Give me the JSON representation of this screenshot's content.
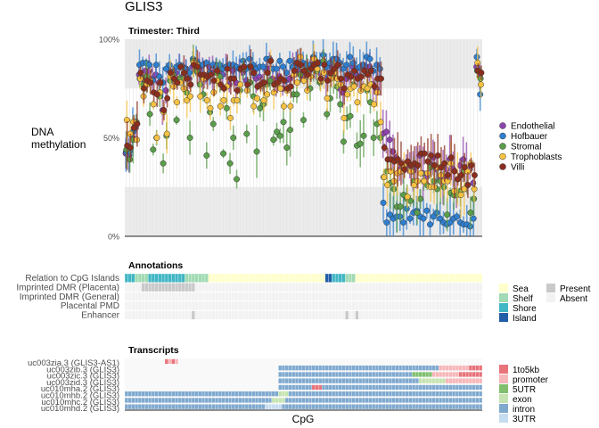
{
  "title": "GLIS3",
  "chart_data": [
    {
      "type": "scatter",
      "panel_title": "Trimester: Third",
      "ylabel": "DNA\nmethylation",
      "xlabel": "",
      "ylim": [
        0,
        1
      ],
      "yticks": [
        "0%",
        "50%",
        "100%"
      ],
      "grid": true,
      "legend_position": "right",
      "n_cpg": 107,
      "series": [
        {
          "name": "Endothelial",
          "color": "#8e44ad",
          "values": [
            0.42,
            0.41,
            0.5,
            0.55,
            0.82,
            0.8,
            0.84,
            0.84,
            0.8,
            0.82,
            0.78,
            0.64,
            0.74,
            0.84,
            0.81,
            0.83,
            0.86,
            0.81,
            0.84,
            0.8,
            0.86,
            0.84,
            0.85,
            0.82,
            0.8,
            0.86,
            0.83,
            0.87,
            0.83,
            0.82,
            0.86,
            0.77,
            0.84,
            0.78,
            0.85,
            0.83,
            0.79,
            0.86,
            0.83,
            0.8,
            0.81,
            0.78,
            0.85,
            0.85,
            0.8,
            0.79,
            0.81,
            0.75,
            0.79,
            0.8,
            0.86,
            0.87,
            0.84,
            0.81,
            0.84,
            0.84,
            0.87,
            0.84,
            0.83,
            0.88,
            0.8,
            0.83,
            0.86,
            0.86,
            0.75,
            0.73,
            0.8,
            0.82,
            0.86,
            0.82,
            0.8,
            0.76,
            0.86,
            0.86,
            0.77,
            0.75,
            0.8,
            0.52,
            0.53,
            0.49,
            0.43,
            0.4,
            0.34,
            0.33,
            0.37,
            0.36,
            0.33,
            0.35,
            0.41,
            0.32,
            0.3,
            0.37,
            0.4,
            0.34,
            0.29,
            0.3,
            0.34,
            0.39,
            0.34,
            0.22,
            0.36,
            0.39,
            0.35,
            0.34,
            0.27,
            0.86,
            0.81
          ]
        },
        {
          "name": "Hofbauer",
          "color": "#2f7fd0",
          "values": [
            0.43,
            0.43,
            0.53,
            0.57,
            0.87,
            0.88,
            0.88,
            0.87,
            0.79,
            0.87,
            0.81,
            0.78,
            0.85,
            0.87,
            0.83,
            0.86,
            0.87,
            0.86,
            0.85,
            0.83,
            0.9,
            0.89,
            0.87,
            0.87,
            0.88,
            0.83,
            0.87,
            0.86,
            0.87,
            0.85,
            0.86,
            0.87,
            0.87,
            0.86,
            0.85,
            0.89,
            0.85,
            0.9,
            0.87,
            0.85,
            0.86,
            0.86,
            0.9,
            0.9,
            0.85,
            0.85,
            0.89,
            0.86,
            0.83,
            0.89,
            0.86,
            0.88,
            0.87,
            0.88,
            0.87,
            0.87,
            0.91,
            0.87,
            0.88,
            0.92,
            0.86,
            0.88,
            0.9,
            0.9,
            0.88,
            0.85,
            0.87,
            0.91,
            0.88,
            0.85,
            0.86,
            0.87,
            0.91,
            0.9,
            0.84,
            0.87,
            0.85,
            0.17,
            0.07,
            0.11,
            0.09,
            0.1,
            0.1,
            0.07,
            0.14,
            0.09,
            0.12,
            0.13,
            0.1,
            0.09,
            0.13,
            0.06,
            0.1,
            0.12,
            0.09,
            0.07,
            0.06,
            0.07,
            0.09,
            0.1,
            0.07,
            0.06,
            0.06,
            0.05,
            0.09,
            0.91,
            0.72
          ]
        },
        {
          "name": "Stromal",
          "color": "#5a9e4a",
          "values": [
            0.44,
            0.39,
            0.49,
            0.58,
            0.8,
            0.77,
            0.81,
            0.62,
            0.44,
            0.5,
            0.71,
            0.37,
            0.51,
            0.79,
            0.82,
            0.59,
            0.8,
            0.8,
            0.73,
            0.5,
            0.89,
            0.84,
            0.77,
            0.72,
            0.41,
            0.63,
            0.57,
            0.83,
            0.81,
            0.42,
            0.65,
            0.37,
            0.5,
            0.29,
            0.74,
            0.85,
            0.52,
            0.78,
            0.71,
            0.43,
            0.65,
            0.67,
            0.77,
            0.79,
            0.49,
            0.53,
            0.51,
            0.58,
            0.45,
            0.54,
            0.72,
            0.72,
            0.82,
            0.59,
            0.84,
            0.75,
            0.86,
            0.84,
            0.78,
            0.89,
            0.62,
            0.7,
            0.81,
            0.76,
            0.67,
            0.48,
            0.6,
            0.61,
            0.77,
            0.46,
            0.47,
            0.51,
            0.74,
            0.68,
            0.5,
            0.57,
            0.5,
            0.3,
            0.33,
            0.27,
            0.24,
            0.15,
            0.15,
            0.21,
            0.19,
            0.18,
            0.28,
            0.12,
            0.19,
            0.28,
            0.26,
            0.35,
            0.28,
            0.24,
            0.28,
            0.25,
            0.11,
            0.22,
            0.21,
            0.21,
            0.23,
            0.33,
            0.26,
            0.12,
            0.19,
            0.84,
            0.8
          ]
        },
        {
          "name": "Trophoblasts",
          "color": "#f5c242",
          "values": [
            0.59,
            0.52,
            0.58,
            0.49,
            0.8,
            0.71,
            0.77,
            0.79,
            0.67,
            0.5,
            0.73,
            0.63,
            0.52,
            0.81,
            0.76,
            0.68,
            0.78,
            0.75,
            0.69,
            0.71,
            0.88,
            0.87,
            0.71,
            0.8,
            0.69,
            0.65,
            0.73,
            0.79,
            0.66,
            0.69,
            0.76,
            0.6,
            0.69,
            0.69,
            0.77,
            0.86,
            0.74,
            0.86,
            0.66,
            0.7,
            0.76,
            0.69,
            0.72,
            0.89,
            0.73,
            0.77,
            0.75,
            0.66,
            0.74,
            0.66,
            0.82,
            0.78,
            0.91,
            0.79,
            0.74,
            0.81,
            0.9,
            0.85,
            0.79,
            0.83,
            0.7,
            0.8,
            0.83,
            0.8,
            0.77,
            0.6,
            0.72,
            0.75,
            0.76,
            0.68,
            0.74,
            0.76,
            0.75,
            0.77,
            0.67,
            0.73,
            0.58,
            0.3,
            0.26,
            0.33,
            0.28,
            0.32,
            0.33,
            0.36,
            0.2,
            0.33,
            0.26,
            0.28,
            0.32,
            0.28,
            0.32,
            0.25,
            0.25,
            0.35,
            0.31,
            0.28,
            0.28,
            0.37,
            0.23,
            0.29,
            0.21,
            0.24,
            0.33,
            0.37,
            0.24,
            0.88,
            0.77
          ]
        },
        {
          "name": "Villi",
          "color": "#8b2e1e",
          "values": [
            0.46,
            0.45,
            0.55,
            0.57,
            0.83,
            0.75,
            0.79,
            0.78,
            0.73,
            0.72,
            0.78,
            0.64,
            0.7,
            0.83,
            0.8,
            0.78,
            0.86,
            0.83,
            0.8,
            0.77,
            0.87,
            0.86,
            0.82,
            0.82,
            0.81,
            0.82,
            0.79,
            0.84,
            0.77,
            0.75,
            0.85,
            0.8,
            0.8,
            0.74,
            0.85,
            0.86,
            0.77,
            0.86,
            0.83,
            0.76,
            0.77,
            0.78,
            0.83,
            0.89,
            0.77,
            0.78,
            0.8,
            0.79,
            0.75,
            0.76,
            0.84,
            0.88,
            0.87,
            0.84,
            0.82,
            0.85,
            0.87,
            0.88,
            0.8,
            0.87,
            0.79,
            0.83,
            0.85,
            0.87,
            0.8,
            0.75,
            0.82,
            0.81,
            0.84,
            0.8,
            0.81,
            0.84,
            0.82,
            0.84,
            0.76,
            0.8,
            0.8,
            0.45,
            0.39,
            0.39,
            0.38,
            0.39,
            0.37,
            0.34,
            0.38,
            0.36,
            0.37,
            0.36,
            0.42,
            0.42,
            0.38,
            0.41,
            0.36,
            0.41,
            0.35,
            0.37,
            0.31,
            0.4,
            0.33,
            0.29,
            0.31,
            0.35,
            0.26,
            0.36,
            0.31,
            0.84,
            0.83
          ]
        }
      ]
    },
    {
      "type": "heatmap",
      "panel_title": "Annotations",
      "rows": [
        "Relation to CpG Islands",
        "Imprinted DMR (Placenta)",
        "Imprinted DMR (General)",
        "Placental PMD",
        "Enhancer"
      ],
      "cpg_island_segments": [
        {
          "state": "Shore",
          "from": 0,
          "to": 2
        },
        {
          "state": "Shelf",
          "from": 3,
          "to": 6
        },
        {
          "state": "Shore",
          "from": 7,
          "to": 17
        },
        {
          "state": "Shelf",
          "from": 18,
          "to": 24
        },
        {
          "state": "Sea",
          "from": 25,
          "to": 59
        },
        {
          "state": "Island",
          "from": 60,
          "to": 61
        },
        {
          "state": "Shore",
          "from": 62,
          "to": 65
        },
        {
          "state": "Shelf",
          "from": 66,
          "to": 68
        },
        {
          "state": "Sea",
          "from": 69,
          "to": 106
        }
      ],
      "imprinted_dmr_placenta_present": [
        5,
        20
      ],
      "enhancer_present": [
        20,
        66,
        69
      ],
      "legend_islands": [
        "Sea",
        "Shelf",
        "Shore",
        "Island"
      ],
      "legend_presence": [
        "Present",
        "Absent"
      ],
      "colors": {
        "Sea": "#ffffcc",
        "Shelf": "#a1dab4",
        "Shore": "#41b6c4",
        "Island": "#225ea8",
        "Present": "#c9c9c9",
        "Absent": "#f2f2f2"
      }
    },
    {
      "type": "heatmap",
      "panel_title": "Transcripts",
      "xlabel": "CpG",
      "transcript_labels": [
        "uc003zia.3 (GLIS3-AS1)",
        "uc003zib.3 (GLIS3)",
        "uc003zic.3 (GLIS3)",
        "uc003zid.3 (GLIS3)",
        "uc010mha.2 (GLIS3)",
        "uc010mhb.2 (GLIS3)",
        "uc010mhc.2 (GLIS3)",
        "uc010mhd.2 (GLIS3)"
      ],
      "legend": [
        "1to5kb",
        "promoter",
        "5UTR",
        "exon",
        "intron",
        "3UTR"
      ],
      "colors": {
        "1to5kb": "#e8737a",
        "promoter": "#f7b6b9",
        "5UTR": "#7fbf6e",
        "exon": "#c5e3b0",
        "intron": "#7fa9cf",
        "3UTR": "#c6dcef"
      }
    }
  ]
}
